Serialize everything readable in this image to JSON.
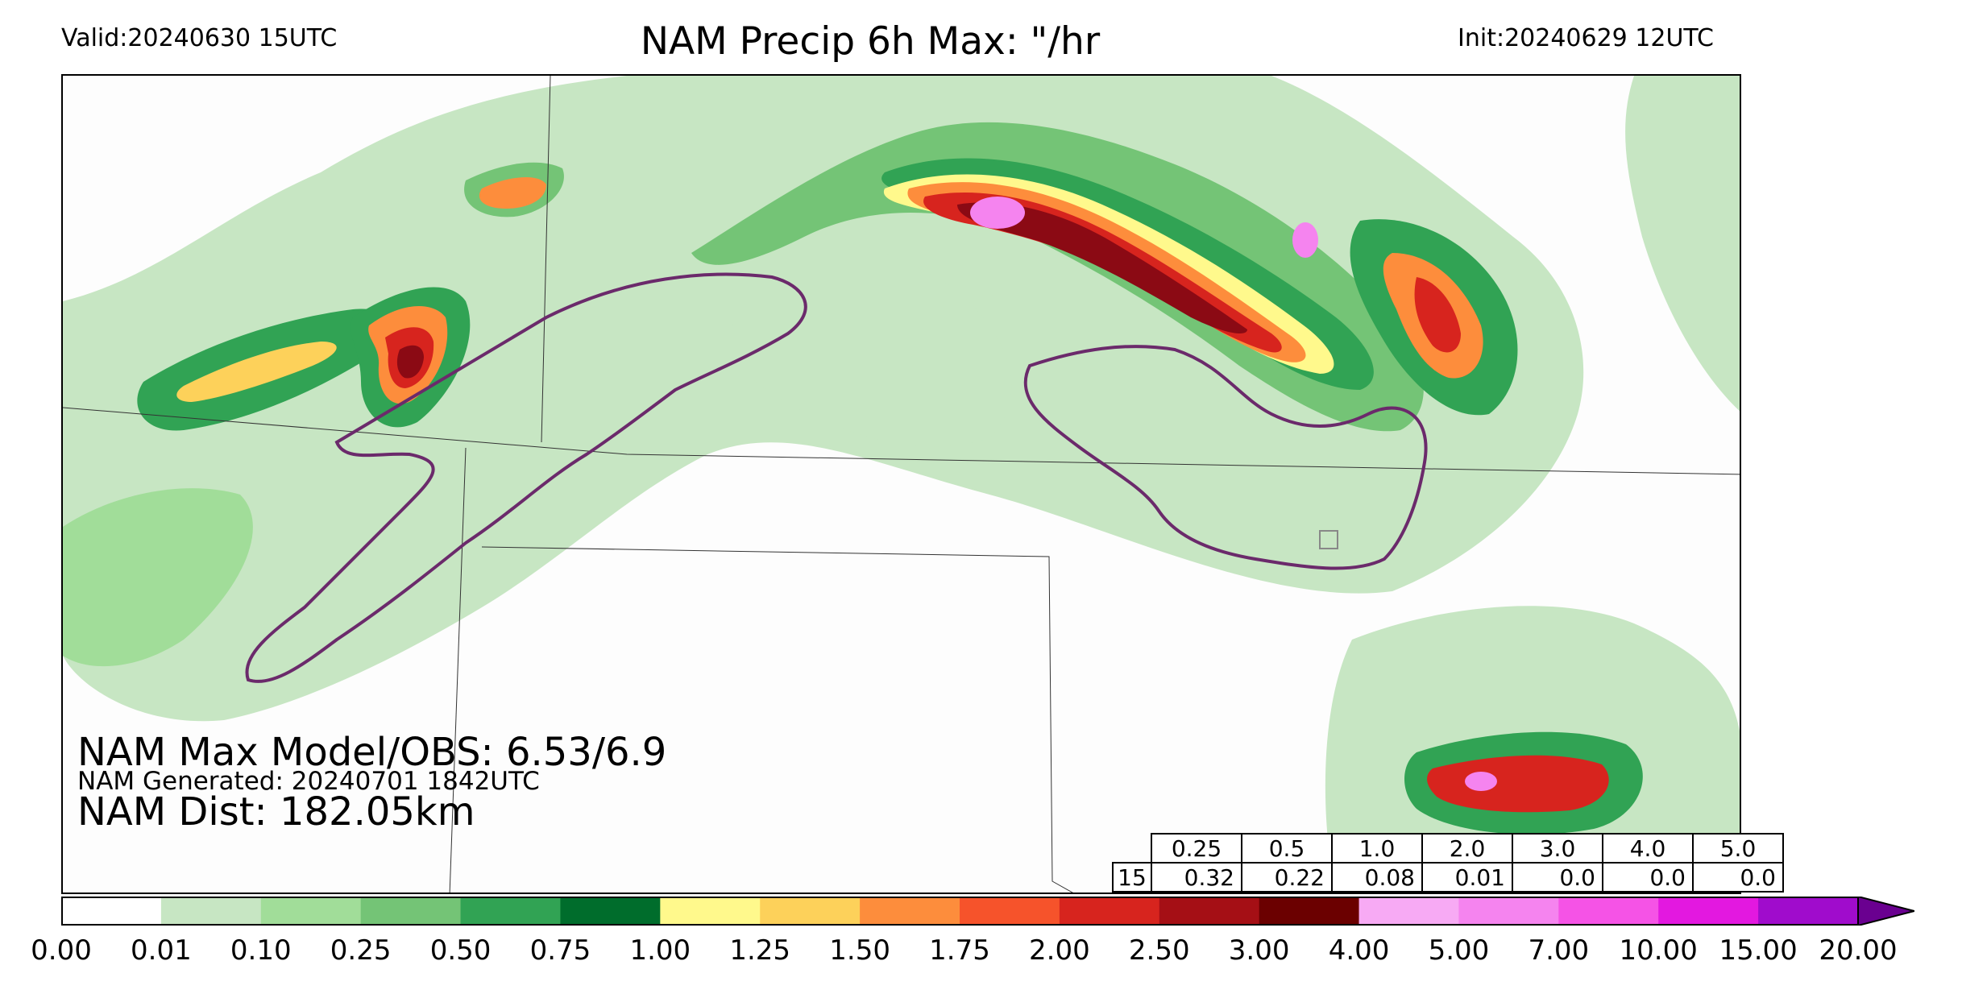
{
  "header": {
    "valid": "Valid:20240630 15UTC",
    "title": "NAM Precip 6h Max: \"/hr",
    "init": "Init:20240629 12UTC"
  },
  "stats": {
    "max_model_obs": "NAM Max Model/OBS: 6.53/6.9",
    "generated": "NAM Generated: 20240701 1842UTC",
    "dist": "NAM Dist: 182.05km"
  },
  "threshold_table": {
    "headers": [
      "0.25",
      "0.5",
      "1.0",
      "2.0",
      "3.0",
      "4.0",
      "5.0"
    ],
    "rows": [
      {
        "label": "15",
        "values": [
          "0.32",
          "0.22",
          "0.08",
          "0.01",
          "0.0",
          "0.0",
          "0.0"
        ]
      }
    ]
  },
  "colorbar": {
    "ticks": [
      "0.00",
      "0.01",
      "0.10",
      "0.25",
      "0.50",
      "0.75",
      "1.00",
      "1.25",
      "1.50",
      "1.75",
      "2.00",
      "2.50",
      "3.00",
      "4.00",
      "5.00",
      "7.00",
      "10.00",
      "15.00",
      "20.00"
    ],
    "colors": [
      "#ffffff",
      "#c7e6c3",
      "#a1dd99",
      "#74c476",
      "#31a354",
      "#006d2c",
      "#fff98c",
      "#fdd15a",
      "#fd8d3c",
      "#f6532b",
      "#d7241e",
      "#a50f15",
      "#6b0000",
      "#f7aaf4",
      "#f584ef",
      "#f553e6",
      "#e318e0",
      "#a00ccc",
      "#6a0090"
    ],
    "extend_color": "#6a0090"
  },
  "map_colors": {
    "light_green": "#c7e6c3",
    "green": "#a1dd99",
    "mid_green": "#74c476",
    "dark_green": "#31a354",
    "deep_green": "#006d2c",
    "yellow": "#fff98c",
    "orange": "#fd8d3c",
    "red": "#d7241e",
    "dark_red": "#8b0a14",
    "pink": "#f584ef",
    "obs_contour": "#6b2a6b"
  }
}
